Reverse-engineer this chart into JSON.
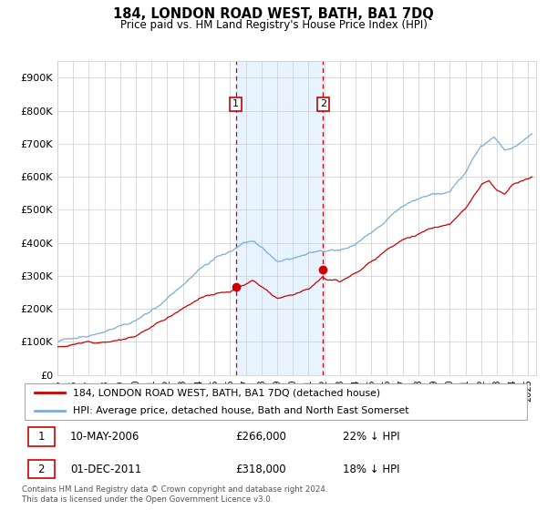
{
  "title": "184, LONDON ROAD WEST, BATH, BA1 7DQ",
  "subtitle": "Price paid vs. HM Land Registry's House Price Index (HPI)",
  "ylim": [
    0,
    950000
  ],
  "yticks": [
    0,
    100000,
    200000,
    300000,
    400000,
    500000,
    600000,
    700000,
    800000,
    900000
  ],
  "ytick_labels": [
    "£0",
    "£100K",
    "£200K",
    "£300K",
    "£400K",
    "£500K",
    "£600K",
    "£700K",
    "£800K",
    "£900K"
  ],
  "xlim_start": 1995.0,
  "xlim_end": 2025.5,
  "line1_color": "#cc0000",
  "line2_color": "#7aacdc",
  "legend1_label": "184, LONDON ROAD WEST, BATH, BA1 7DQ (detached house)",
  "legend2_label": "HPI: Average price, detached house, Bath and North East Somerset",
  "transaction1_x": 2006.36,
  "transaction1_y": 266000,
  "transaction1_label": "1",
  "transaction2_x": 2011.92,
  "transaction2_y": 318000,
  "transaction2_label": "2",
  "annotation1_date": "10-MAY-2006",
  "annotation1_price": "£266,000",
  "annotation1_hpi": "22% ↓ HPI",
  "annotation2_date": "01-DEC-2011",
  "annotation2_price": "£318,000",
  "annotation2_hpi": "18% ↓ HPI",
  "footer": "Contains HM Land Registry data © Crown copyright and database right 2024.\nThis data is licensed under the Open Government Licence v3.0.",
  "grid_color": "#cccccc",
  "background_color": "#ffffff",
  "shaded_region_color": "#ddeeff"
}
